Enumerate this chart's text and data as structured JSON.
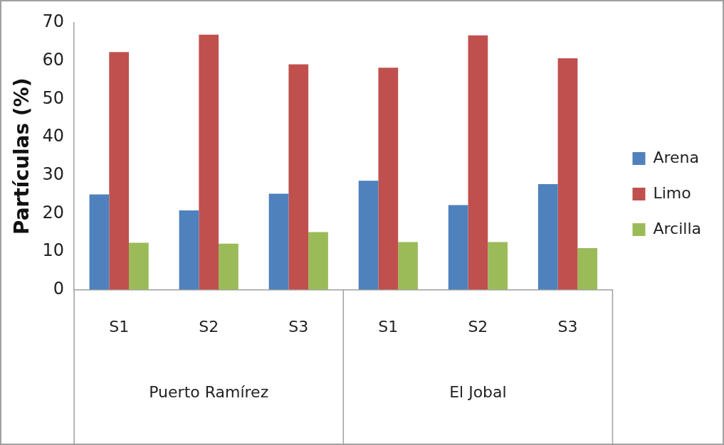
{
  "chart_data": {
    "type": "bar",
    "ylabel": "Partículas (%)",
    "categories": [
      "S1",
      "S2",
      "S3",
      "S1",
      "S2",
      "S3"
    ],
    "series": [
      {
        "name": "Arena",
        "color": "#4f81bd",
        "values": [
          25.0,
          20.8,
          25.2,
          28.6,
          22.2,
          27.7
        ]
      },
      {
        "name": "Limo",
        "color": "#c0504d",
        "values": [
          62.3,
          66.9,
          59.1,
          58.2,
          66.7,
          60.7
        ]
      },
      {
        "name": "Arcilla",
        "color": "#9bbb59",
        "values": [
          12.3,
          12.1,
          15.1,
          12.5,
          12.5,
          10.9
        ]
      }
    ],
    "ylim": [
      0,
      70
    ],
    "yticks": [
      0,
      10,
      20,
      30,
      40,
      50,
      60,
      70
    ],
    "grid": false,
    "legend": "right",
    "annotations": [
      "Puerto Ramírez",
      "El Jobal"
    ]
  }
}
